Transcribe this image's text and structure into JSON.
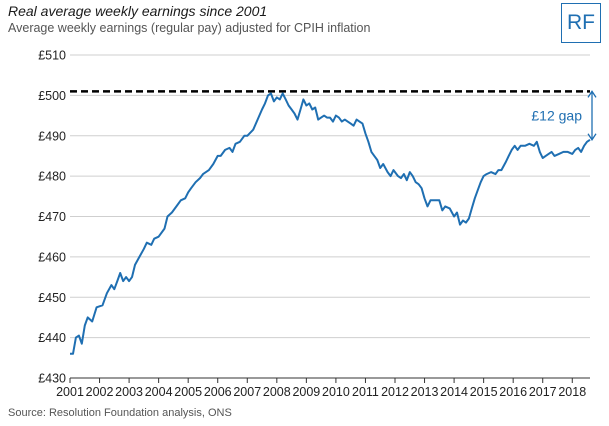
{
  "header": {
    "title": "Real average weekly earnings since 2001",
    "subtitle": "Average weekly earnings (regular pay) adjusted for CPIH inflation"
  },
  "logo": {
    "text": "RF",
    "color": "#1f6fb2"
  },
  "footer": {
    "source": "Source: Resolution Foundation analysis, ONS"
  },
  "chart_data": {
    "type": "line",
    "title": "Real average weekly earnings since 2001",
    "xlabel": "",
    "ylabel": "",
    "y_tick_labels": [
      "£430",
      "£440",
      "£450",
      "£460",
      "£470",
      "£480",
      "£490",
      "£500",
      "£510"
    ],
    "y_ticks": [
      430,
      440,
      450,
      460,
      470,
      480,
      490,
      500,
      510
    ],
    "x_tick_labels": [
      "2001",
      "2002",
      "2003",
      "2004",
      "2005",
      "2006",
      "2007",
      "2008",
      "2009",
      "2010",
      "2011",
      "2012",
      "2013",
      "2014",
      "2015",
      "2016",
      "2017",
      "2018"
    ],
    "ylim": [
      430,
      510
    ],
    "xlim": [
      2001.0,
      2018.6
    ],
    "grid": "horizontal",
    "series": [
      {
        "color": "#1f6fb2",
        "points": [
          [
            2001.0,
            436
          ],
          [
            2001.1,
            436
          ],
          [
            2001.2,
            440
          ],
          [
            2001.3,
            440.5
          ],
          [
            2001.4,
            438.5
          ],
          [
            2001.5,
            443
          ],
          [
            2001.6,
            445
          ],
          [
            2001.75,
            444
          ],
          [
            2001.9,
            447.5
          ],
          [
            2002.1,
            448
          ],
          [
            2002.25,
            451
          ],
          [
            2002.4,
            453
          ],
          [
            2002.5,
            452
          ],
          [
            2002.6,
            454
          ],
          [
            2002.7,
            456
          ],
          [
            2002.8,
            454
          ],
          [
            2002.9,
            455
          ],
          [
            2003.0,
            454
          ],
          [
            2003.1,
            455
          ],
          [
            2003.2,
            458
          ],
          [
            2003.35,
            460
          ],
          [
            2003.5,
            462
          ],
          [
            2003.6,
            463.5
          ],
          [
            2003.75,
            463
          ],
          [
            2003.85,
            464.5
          ],
          [
            2004.0,
            465
          ],
          [
            2004.2,
            467
          ],
          [
            2004.3,
            470
          ],
          [
            2004.45,
            471
          ],
          [
            2004.6,
            472.5
          ],
          [
            2004.75,
            474
          ],
          [
            2004.9,
            474.5
          ],
          [
            2005.0,
            476
          ],
          [
            2005.1,
            477
          ],
          [
            2005.25,
            478.5
          ],
          [
            2005.4,
            479.5
          ],
          [
            2005.5,
            480.5
          ],
          [
            2005.7,
            481.5
          ],
          [
            2005.85,
            483
          ],
          [
            2006.0,
            485
          ],
          [
            2006.1,
            485
          ],
          [
            2006.25,
            486.5
          ],
          [
            2006.4,
            487
          ],
          [
            2006.5,
            486
          ],
          [
            2006.6,
            488
          ],
          [
            2006.75,
            488.5
          ],
          [
            2006.9,
            490
          ],
          [
            2007.0,
            490
          ],
          [
            2007.2,
            491.5
          ],
          [
            2007.35,
            494
          ],
          [
            2007.5,
            496.5
          ],
          [
            2007.6,
            498
          ],
          [
            2007.7,
            500
          ],
          [
            2007.8,
            500.5
          ],
          [
            2007.9,
            498.5
          ],
          [
            2008.0,
            499.5
          ],
          [
            2008.1,
            499
          ],
          [
            2008.2,
            500.5
          ],
          [
            2008.3,
            499
          ],
          [
            2008.4,
            497.5
          ],
          [
            2008.5,
            496.5
          ],
          [
            2008.6,
            495.5
          ],
          [
            2008.7,
            494
          ],
          [
            2008.8,
            496.5
          ],
          [
            2008.9,
            499
          ],
          [
            2009.0,
            497.5
          ],
          [
            2009.1,
            498
          ],
          [
            2009.2,
            496.5
          ],
          [
            2009.3,
            497
          ],
          [
            2009.4,
            494
          ],
          [
            2009.5,
            494.5
          ],
          [
            2009.6,
            495
          ],
          [
            2009.7,
            494.5
          ],
          [
            2009.8,
            494.5
          ],
          [
            2009.9,
            493.5
          ],
          [
            2010.0,
            495
          ],
          [
            2010.1,
            494.5
          ],
          [
            2010.2,
            493.5
          ],
          [
            2010.3,
            494
          ],
          [
            2010.4,
            493.5
          ],
          [
            2010.5,
            493
          ],
          [
            2010.6,
            492.5
          ],
          [
            2010.7,
            494
          ],
          [
            2010.8,
            493.5
          ],
          [
            2010.9,
            493
          ],
          [
            2011.0,
            490.5
          ],
          [
            2011.1,
            488.5
          ],
          [
            2011.2,
            486
          ],
          [
            2011.3,
            485
          ],
          [
            2011.4,
            484
          ],
          [
            2011.5,
            482
          ],
          [
            2011.6,
            483
          ],
          [
            2011.75,
            481
          ],
          [
            2011.85,
            480
          ],
          [
            2011.95,
            481.5
          ],
          [
            2012.1,
            480
          ],
          [
            2012.2,
            479.5
          ],
          [
            2012.3,
            480.5
          ],
          [
            2012.4,
            479
          ],
          [
            2012.5,
            481
          ],
          [
            2012.6,
            480
          ],
          [
            2012.7,
            478.5
          ],
          [
            2012.8,
            478
          ],
          [
            2012.9,
            477
          ],
          [
            2013.0,
            474.5
          ],
          [
            2013.1,
            472.5
          ],
          [
            2013.2,
            474
          ],
          [
            2013.35,
            474
          ],
          [
            2013.5,
            474
          ],
          [
            2013.6,
            471.5
          ],
          [
            2013.7,
            472.5
          ],
          [
            2013.85,
            472
          ],
          [
            2014.0,
            470
          ],
          [
            2014.1,
            471
          ],
          [
            2014.2,
            468
          ],
          [
            2014.3,
            469
          ],
          [
            2014.4,
            468.5
          ],
          [
            2014.5,
            469.5
          ],
          [
            2014.6,
            472
          ],
          [
            2014.7,
            474.5
          ],
          [
            2014.8,
            476.5
          ],
          [
            2014.9,
            478.5
          ],
          [
            2015.0,
            480
          ],
          [
            2015.1,
            480.5
          ],
          [
            2015.25,
            481
          ],
          [
            2015.4,
            480.5
          ],
          [
            2015.5,
            481.5
          ],
          [
            2015.6,
            481.5
          ],
          [
            2015.75,
            483.5
          ],
          [
            2015.85,
            485
          ],
          [
            2015.95,
            486.5
          ],
          [
            2016.05,
            487.5
          ],
          [
            2016.15,
            486.5
          ],
          [
            2016.25,
            487.5
          ],
          [
            2016.4,
            487.5
          ],
          [
            2016.55,
            488
          ],
          [
            2016.7,
            487.5
          ],
          [
            2016.8,
            488.5
          ],
          [
            2016.9,
            486
          ],
          [
            2017.0,
            484.5
          ],
          [
            2017.1,
            485
          ],
          [
            2017.2,
            485.5
          ],
          [
            2017.3,
            486
          ],
          [
            2017.4,
            485
          ],
          [
            2017.55,
            485.5
          ],
          [
            2017.7,
            486
          ],
          [
            2017.85,
            486
          ],
          [
            2018.0,
            485.5
          ],
          [
            2018.1,
            486.5
          ],
          [
            2018.2,
            487
          ],
          [
            2018.3,
            486
          ],
          [
            2018.4,
            487.5
          ],
          [
            2018.5,
            488.5
          ],
          [
            2018.6,
            489
          ]
        ]
      }
    ],
    "reference_line": {
      "y": 501,
      "style": "dashed",
      "color": "#000000"
    },
    "annotations": [
      {
        "text": "£12 gap",
        "from_y": 489,
        "to_y": 501,
        "color": "#1f6fb2"
      }
    ]
  }
}
